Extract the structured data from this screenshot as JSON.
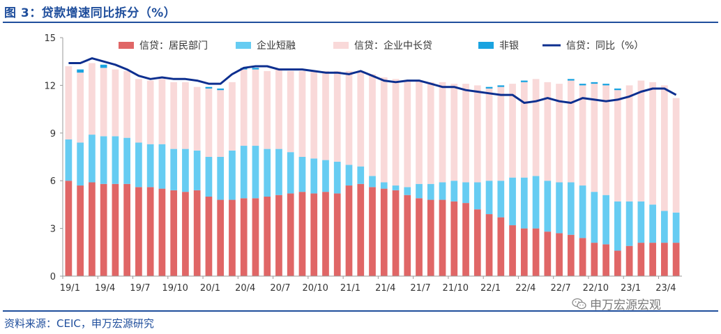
{
  "title": "图 3：贷款增速同比拆分（%）",
  "source": "资料来源：CEIC，申万宏源研究",
  "watermark": "申万宏源宏观",
  "colors": {
    "household": "#e06666",
    "short": "#66ccf2",
    "long": "#f9d9d9",
    "nonbank": "#1aa3e0",
    "yoy": "#0d2f8f"
  },
  "chart_data": {
    "type": "bar",
    "stacked": true,
    "ylim": [
      0,
      15
    ],
    "yticks": [
      0,
      3,
      6,
      9,
      12,
      15
    ],
    "x_tick_labels": [
      "19/1",
      "19/4",
      "19/7",
      "19/10",
      "20/1",
      "20/4",
      "20/7",
      "20/10",
      "21/1",
      "21/4",
      "21/7",
      "21/10",
      "22/1",
      "22/4",
      "22/7",
      "22/10",
      "23/1",
      "23/4"
    ],
    "categories": [
      "19/1",
      "19/2",
      "19/3",
      "19/4",
      "19/5",
      "19/6",
      "19/7",
      "19/8",
      "19/9",
      "19/10",
      "19/11",
      "19/12",
      "20/1",
      "20/2",
      "20/3",
      "20/4",
      "20/5",
      "20/6",
      "20/7",
      "20/8",
      "20/9",
      "20/10",
      "20/11",
      "20/12",
      "21/1",
      "21/2",
      "21/3",
      "21/4",
      "21/5",
      "21/6",
      "21/7",
      "21/8",
      "21/9",
      "21/10",
      "21/11",
      "21/12",
      "22/1",
      "22/2",
      "22/3",
      "22/4",
      "22/5",
      "22/6",
      "22/7",
      "22/8",
      "22/9",
      "22/10",
      "22/11",
      "22/12",
      "23/1",
      "23/2",
      "23/3",
      "23/4",
      "23/5"
    ],
    "legend": [
      "信贷：居民部门",
      "企业短融",
      "信贷：企业中长贷",
      "非银",
      "信贷：同比（%）"
    ],
    "series": [
      {
        "name": "信贷：居民部门",
        "values": [
          6.0,
          5.7,
          5.9,
          5.8,
          5.8,
          5.8,
          5.6,
          5.6,
          5.5,
          5.4,
          5.3,
          5.4,
          5.0,
          4.8,
          4.8,
          4.9,
          4.9,
          5.0,
          5.1,
          5.2,
          5.3,
          5.2,
          5.3,
          5.2,
          5.7,
          5.8,
          5.6,
          5.5,
          5.4,
          5.1,
          4.9,
          4.8,
          4.8,
          4.7,
          4.6,
          4.2,
          3.9,
          3.7,
          3.2,
          3.0,
          3.0,
          2.8,
          2.7,
          2.6,
          2.4,
          2.1,
          2.0,
          1.6,
          1.9,
          2.1,
          2.1,
          2.1,
          2.1
        ]
      },
      {
        "name": "企业短融",
        "values": [
          2.6,
          2.7,
          3.0,
          3.0,
          3.0,
          2.9,
          2.8,
          2.7,
          2.8,
          2.6,
          2.7,
          2.5,
          2.5,
          2.7,
          3.1,
          3.3,
          3.3,
          3.0,
          2.9,
          2.6,
          2.2,
          2.2,
          2.0,
          2.0,
          1.3,
          1.1,
          0.7,
          0.4,
          0.3,
          0.5,
          0.9,
          1.0,
          1.1,
          1.3,
          1.3,
          1.7,
          2.1,
          2.3,
          3.0,
          3.2,
          3.3,
          3.2,
          3.2,
          3.3,
          3.3,
          3.2,
          3.1,
          3.1,
          2.8,
          2.6,
          2.4,
          2.0,
          1.9
        ]
      },
      {
        "name": "信贷：企业中长贷",
        "values": [
          4.6,
          4.4,
          4.5,
          4.3,
          4.2,
          4.2,
          4.0,
          4.0,
          4.1,
          4.2,
          4.2,
          4.0,
          4.3,
          4.2,
          4.3,
          4.8,
          4.8,
          4.9,
          5.0,
          5.1,
          5.4,
          5.5,
          5.6,
          5.7,
          5.9,
          6.0,
          6.4,
          6.6,
          6.7,
          6.7,
          6.5,
          6.4,
          6.3,
          6.1,
          6.2,
          6.1,
          5.8,
          5.9,
          5.9,
          6.0,
          6.1,
          6.2,
          6.2,
          6.4,
          6.3,
          6.8,
          6.9,
          7.0,
          7.3,
          7.6,
          7.7,
          7.9,
          7.2
        ]
      },
      {
        "name": "非银",
        "values": [
          0,
          0.2,
          0,
          0.2,
          0,
          0,
          0,
          0,
          0,
          0,
          0,
          0,
          0.1,
          0.1,
          0,
          0.1,
          0.1,
          0,
          0,
          0,
          0,
          0,
          0,
          0,
          0,
          0,
          0,
          0,
          0,
          0,
          0,
          0,
          0,
          0,
          0,
          0,
          0.1,
          0.1,
          0,
          0.1,
          0,
          0,
          0,
          0.1,
          0.1,
          0.1,
          0.1,
          0.1,
          0,
          0,
          0,
          0,
          0
        ]
      },
      {
        "name": "信贷：同比（%）",
        "type": "line",
        "values": [
          13.4,
          13.4,
          13.7,
          13.5,
          13.3,
          13.0,
          12.6,
          12.4,
          12.5,
          12.4,
          12.4,
          12.3,
          12.1,
          12.1,
          12.7,
          13.1,
          13.2,
          13.2,
          13.0,
          13.0,
          13.0,
          12.9,
          12.8,
          12.8,
          12.7,
          12.9,
          12.6,
          12.3,
          12.2,
          12.3,
          12.3,
          12.1,
          11.9,
          11.9,
          11.7,
          11.6,
          11.5,
          11.4,
          11.4,
          10.9,
          11.0,
          11.2,
          11.0,
          10.9,
          11.2,
          11.1,
          11.0,
          11.1,
          11.3,
          11.6,
          11.8,
          11.8,
          11.4
        ]
      }
    ]
  }
}
